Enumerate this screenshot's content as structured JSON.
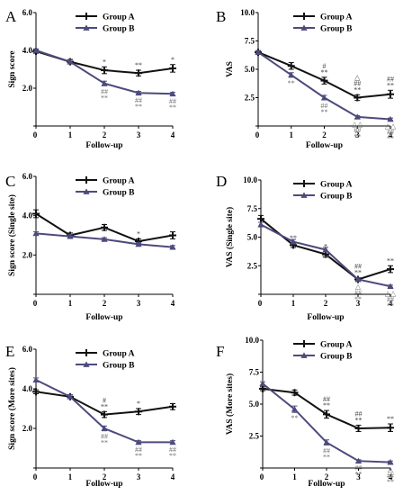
{
  "colors": {
    "group_a": "#111111",
    "group_b": "#4d4a7c",
    "annot_a": "#444444",
    "annot_b": "#707070"
  },
  "chart_data": [
    {
      "panel": "A",
      "type": "line",
      "xlabel": "Follow-up",
      "ylabel": "Sign score",
      "x": [
        0,
        1,
        2,
        3,
        4
      ],
      "xlim": [
        0,
        4
      ],
      "ylim": [
        0,
        6
      ],
      "yticks": [
        2,
        4,
        6
      ],
      "ytick_labels": [
        "2.0",
        "4.0",
        "6.0"
      ],
      "legend": "top-right",
      "grid": false,
      "series": [
        {
          "name": "Group A",
          "values": [
            3.95,
            3.4,
            2.95,
            2.8,
            3.05
          ],
          "errors": [
            0.1,
            0.12,
            0.18,
            0.15,
            0.2
          ]
        },
        {
          "name": "Group B",
          "values": [
            4.0,
            3.4,
            2.25,
            1.75,
            1.7
          ],
          "errors": [
            0.08,
            0.1,
            0.12,
            0.08,
            0.08
          ]
        }
      ],
      "annotations": [
        {
          "x": 2,
          "series": "Group A",
          "lines": [
            "*"
          ]
        },
        {
          "x": 3,
          "series": "Group A",
          "lines": [
            "**"
          ]
        },
        {
          "x": 4,
          "series": "Group A",
          "lines": [
            "*"
          ]
        },
        {
          "x": 2,
          "series": "Group B",
          "lines": [
            "##",
            "**"
          ]
        },
        {
          "x": 3,
          "series": "Group B",
          "lines": [
            "##",
            "**"
          ]
        },
        {
          "x": 4,
          "series": "Group B",
          "lines": [
            "##",
            "**"
          ]
        }
      ]
    },
    {
      "panel": "B",
      "type": "line",
      "xlabel": "Follow-up",
      "ylabel": "VAS",
      "x": [
        0,
        1,
        2,
        3,
        4
      ],
      "xlim": [
        0,
        4
      ],
      "ylim": [
        0,
        10
      ],
      "yticks": [
        2.5,
        5,
        7.5,
        10
      ],
      "ytick_labels": [
        "2.5",
        "5.0",
        "7.5",
        "10.0"
      ],
      "legend": "top-right",
      "grid": false,
      "series": [
        {
          "name": "Group A",
          "values": [
            6.5,
            5.3,
            4.0,
            2.5,
            2.8
          ],
          "errors": [
            0.15,
            0.3,
            0.3,
            0.25,
            0.35
          ]
        },
        {
          "name": "Group B",
          "values": [
            6.5,
            4.5,
            2.5,
            0.8,
            0.6
          ],
          "errors": [
            0.12,
            0.2,
            0.2,
            0.12,
            0.1
          ]
        }
      ],
      "annotations": [
        {
          "x": 2,
          "series": "Group A",
          "lines": [
            "#",
            "**"
          ]
        },
        {
          "x": 3,
          "series": "Group A",
          "lines": [
            "△",
            "##",
            "**"
          ]
        },
        {
          "x": 4,
          "series": "Group A",
          "lines": [
            "##",
            "**"
          ]
        },
        {
          "x": 1,
          "series": "Group B",
          "lines": [
            "**"
          ]
        },
        {
          "x": 2,
          "series": "Group B",
          "lines": [
            "##",
            "**"
          ]
        },
        {
          "x": 3,
          "series": "Group B",
          "lines": [
            "△△",
            "##",
            "**"
          ]
        },
        {
          "x": 4,
          "series": "Group B",
          "lines": [
            "△△",
            "##",
            "**"
          ]
        }
      ]
    },
    {
      "panel": "C",
      "type": "line",
      "xlabel": "Follow-up",
      "ylabel": "Sign score (Single site)",
      "x": [
        0,
        1,
        2,
        3,
        4
      ],
      "xlim": [
        0,
        4
      ],
      "ylim": [
        0,
        6
      ],
      "yticks": [
        2,
        4,
        6
      ],
      "ytick_labels": [
        "2.0",
        "4.0",
        "6.0"
      ],
      "legend": "top-right",
      "grid": false,
      "series": [
        {
          "name": "Group A",
          "values": [
            4.1,
            3.0,
            3.4,
            2.7,
            3.0
          ],
          "errors": [
            0.2,
            0.12,
            0.15,
            0.12,
            0.18
          ]
        },
        {
          "name": "Group B",
          "values": [
            3.1,
            2.95,
            2.8,
            2.55,
            2.4
          ],
          "errors": [
            0.08,
            0.08,
            0.08,
            0.08,
            0.08
          ]
        }
      ],
      "annotations": [
        {
          "x": 3,
          "series": "Group A",
          "lines": [
            "*"
          ]
        }
      ]
    },
    {
      "panel": "D",
      "type": "line",
      "xlabel": "Follow-up",
      "ylabel": "VAS (Single site)",
      "x": [
        0,
        1,
        2,
        3,
        4
      ],
      "xlim": [
        0,
        4
      ],
      "ylim": [
        0,
        10
      ],
      "yticks": [
        2.5,
        5,
        7.5,
        10
      ],
      "ytick_labels": [
        "2.5",
        "5.0",
        "7.5",
        "10.0"
      ],
      "legend": "top-right",
      "grid": false,
      "series": [
        {
          "name": "Group A",
          "values": [
            6.6,
            4.3,
            3.5,
            1.3,
            2.2
          ],
          "errors": [
            0.3,
            0.2,
            0.25,
            0.15,
            0.3
          ]
        },
        {
          "name": "Group B",
          "values": [
            6.1,
            4.6,
            3.9,
            1.3,
            0.7
          ],
          "errors": [
            0.2,
            0.2,
            0.2,
            0.12,
            0.1
          ]
        }
      ],
      "annotations": [
        {
          "x": 1,
          "series": "Group A",
          "lines": [
            "**"
          ]
        },
        {
          "x": 2,
          "series": "Group A",
          "lines": [
            "*"
          ]
        },
        {
          "x": 3,
          "series": "Group A",
          "lines": [
            "##",
            "**"
          ]
        },
        {
          "x": 4,
          "series": "Group A",
          "lines": [
            "**"
          ]
        },
        {
          "x": 2,
          "series": "Group B",
          "lines": [
            "**"
          ]
        },
        {
          "x": 3,
          "series": "Group B",
          "lines": [
            "△",
            "##",
            "**"
          ]
        },
        {
          "x": 4,
          "series": "Group B",
          "lines": [
            "△△",
            "##",
            "**"
          ]
        }
      ]
    },
    {
      "panel": "E",
      "type": "line",
      "xlabel": "Follow-up",
      "ylabel": "Sign score (More sites)",
      "x": [
        0,
        1,
        2,
        3,
        4
      ],
      "xlim": [
        0,
        4
      ],
      "ylim": [
        0,
        6
      ],
      "yticks": [
        2,
        4,
        6
      ],
      "ytick_labels": [
        "2.0",
        "4.0",
        "6.0"
      ],
      "legend": "top-right",
      "grid": false,
      "series": [
        {
          "name": "Group A",
          "values": [
            3.85,
            3.6,
            2.7,
            2.85,
            3.1
          ],
          "errors": [
            0.1,
            0.1,
            0.15,
            0.15,
            0.15
          ]
        },
        {
          "name": "Group B",
          "values": [
            4.45,
            3.6,
            2.0,
            1.3,
            1.3
          ],
          "errors": [
            0.1,
            0.1,
            0.12,
            0.08,
            0.08
          ]
        }
      ],
      "annotations": [
        {
          "x": 2,
          "series": "Group A",
          "lines": [
            "#",
            "**"
          ]
        },
        {
          "x": 3,
          "series": "Group A",
          "lines": [
            "*"
          ]
        },
        {
          "x": 2,
          "series": "Group B",
          "lines": [
            "##",
            "**"
          ]
        },
        {
          "x": 3,
          "series": "Group B",
          "lines": [
            "##",
            "**"
          ]
        },
        {
          "x": 4,
          "series": "Group B",
          "lines": [
            "##",
            "**"
          ]
        }
      ]
    },
    {
      "panel": "F",
      "type": "line",
      "xlabel": "Follow-up",
      "ylabel": "VAS (More sites)",
      "x": [
        0,
        1,
        2,
        3,
        4
      ],
      "xlim": [
        0,
        4
      ],
      "ylim": [
        0,
        10
      ],
      "yticks": [
        2.5,
        5,
        7.5,
        10
      ],
      "ytick_labels": [
        "2.5",
        "5.0",
        "7.5",
        "10.0"
      ],
      "legend": "top-right",
      "grid": false,
      "series": [
        {
          "name": "Group A",
          "values": [
            6.2,
            5.9,
            4.2,
            3.1,
            3.15
          ],
          "errors": [
            0.15,
            0.2,
            0.3,
            0.25,
            0.3
          ]
        },
        {
          "name": "Group B",
          "values": [
            6.6,
            4.6,
            2.0,
            0.55,
            0.45
          ],
          "errors": [
            0.15,
            0.25,
            0.2,
            0.1,
            0.1
          ]
        }
      ],
      "annotations": [
        {
          "x": 2,
          "series": "Group A",
          "lines": [
            "##",
            "**"
          ]
        },
        {
          "x": 3,
          "series": "Group A",
          "lines": [
            "##",
            "**"
          ]
        },
        {
          "x": 4,
          "series": "Group A",
          "lines": [
            "**"
          ]
        },
        {
          "x": 1,
          "series": "Group B",
          "lines": [
            "**"
          ]
        },
        {
          "x": 2,
          "series": "Group B",
          "lines": [
            "##",
            "**"
          ]
        },
        {
          "x": 3,
          "series": "Group B",
          "lines": [
            "##",
            "**"
          ]
        },
        {
          "x": 4,
          "series": "Group B",
          "lines": [
            "△",
            "##",
            "**"
          ]
        }
      ]
    }
  ]
}
